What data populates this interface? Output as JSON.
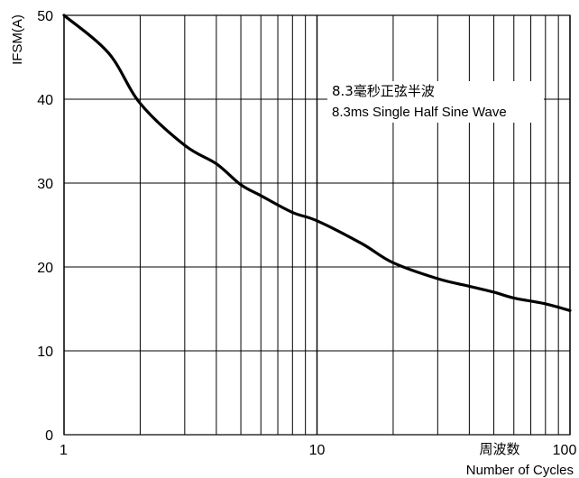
{
  "chart_data": {
    "type": "line",
    "title": "",
    "xlabel": "Number of Cycles",
    "xlabel_cn": "周波数",
    "ylabel": "IFSM(A)",
    "x_scale": "log",
    "xlim": [
      1,
      100
    ],
    "ylim": [
      0,
      50
    ],
    "grid": true,
    "x_ticks": [
      1,
      10,
      100
    ],
    "x_tick_labels": [
      "1",
      "10",
      "100"
    ],
    "y_ticks": [
      0,
      10,
      20,
      30,
      40,
      50
    ],
    "y_tick_labels": [
      "0",
      "10",
      "20",
      "30",
      "40",
      "50"
    ],
    "annotation": {
      "line1": "8.3毫秒正弦半波",
      "line2": "8.3ms Single Half Sine Wave"
    },
    "series": [
      {
        "color": "#000000",
        "x": [
          1,
          1.5,
          2,
          3,
          4,
          5,
          6,
          8,
          10,
          15,
          20,
          30,
          40,
          50,
          60,
          80,
          100
        ],
        "y": [
          50,
          45.5,
          39.5,
          34.5,
          32.3,
          29.8,
          28.5,
          26.5,
          25.5,
          22.8,
          20.5,
          18.6,
          17.7,
          17.0,
          16.3,
          15.6,
          14.8
        ]
      }
    ]
  }
}
